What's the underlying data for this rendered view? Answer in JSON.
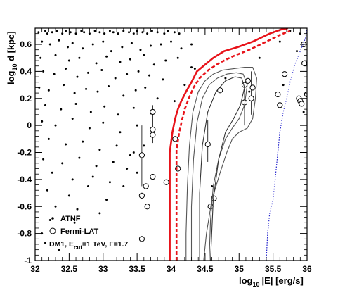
{
  "chart_data": {
    "type": "scatter",
    "xlabel": "log",
    "xlabel_sub": "10",
    "xlabel_rest": "|E| [erg/s]",
    "ylabel": "log",
    "ylabel_sub": "10",
    "ylabel_rest": " d [kpc]",
    "xlim": [
      32,
      36
    ],
    "ylim": [
      -1,
      0.72
    ],
    "xticks": [
      32,
      32.5,
      33,
      33.5,
      34,
      34.5,
      35,
      35.5,
      36
    ],
    "xtick_labels": [
      "32",
      "32.5",
      "33",
      "33.5",
      "34",
      "34.5",
      "35",
      "35.5",
      "36"
    ],
    "yticks": [
      -1,
      -0.8,
      -0.6,
      -0.4,
      -0.2,
      0,
      0.2,
      0.4,
      0.6
    ],
    "ytick_labels": [
      "-1",
      "-0.8",
      "-0.6",
      "-0.4",
      "-0.2",
      "0",
      "0.2",
      "0.4",
      "0.6"
    ],
    "legend": {
      "placement": "bottom-left",
      "entries": [
        {
          "marker": "dot",
          "label": "ATNF"
        },
        {
          "marker": "open-circle",
          "label": "Fermi-LAT"
        }
      ],
      "note_prefix": "DM1, E",
      "note_sub": "cut",
      "note_rest": "=1 TeV, Γ=1.7"
    },
    "series": [
      {
        "name": "ATNF",
        "marker": "dot",
        "x": [
          32.05,
          32.15,
          32.18,
          32.25,
          32.32,
          32.4,
          32.45,
          32.52,
          32.6,
          32.68,
          32.72,
          32.8,
          32.88,
          32.95,
          33.02,
          33.1,
          33.15,
          33.22,
          33.3,
          33.38,
          33.45,
          33.5,
          33.58,
          33.65,
          33.72,
          33.8,
          33.9,
          33.95,
          34.05,
          34.12,
          32.1,
          32.22,
          32.35,
          32.48,
          32.55,
          32.7,
          32.85,
          33.0,
          33.12,
          33.28,
          33.42,
          33.55,
          33.7,
          33.85,
          34.0,
          34.15,
          34.3,
          32.08,
          32.3,
          32.5,
          32.65,
          32.9,
          33.05,
          33.25,
          33.4,
          33.6,
          33.75,
          33.92,
          34.1,
          32.12,
          32.28,
          32.45,
          32.62,
          32.78,
          32.98,
          33.18,
          33.35,
          33.52,
          33.68,
          33.88,
          34.2,
          32.06,
          32.2,
          32.42,
          32.58,
          32.75,
          32.92,
          33.08,
          33.3,
          33.48,
          33.62,
          33.8,
          34.05,
          32.15,
          32.38,
          32.6,
          32.82,
          33.02,
          33.22,
          33.45,
          33.7,
          32.1,
          32.3,
          32.55,
          32.8,
          33.0,
          33.25,
          33.5,
          33.75,
          32.2,
          32.45,
          32.7,
          32.95,
          33.2,
          33.45,
          32.12,
          32.4,
          32.65,
          32.9,
          33.15,
          33.4,
          32.25,
          32.55,
          32.85,
          33.1,
          33.35,
          32.18,
          32.5,
          32.78,
          33.05,
          32.3,
          32.62,
          32.95,
          32.22,
          32.58,
          32.1,
          32.15,
          32.35,
          33.3,
          33.5,
          33.6,
          34.3,
          34.6,
          34.8,
          35.3,
          35.6,
          35.75,
          35.9,
          35.95,
          34.35,
          35.15,
          35.65,
          35.85
        ],
        "y": [
          0.69,
          0.7,
          0.68,
          0.69,
          0.7,
          0.68,
          0.7,
          0.69,
          0.68,
          0.7,
          0.69,
          0.68,
          0.7,
          0.69,
          0.68,
          0.7,
          0.69,
          0.68,
          0.7,
          0.69,
          0.68,
          0.7,
          0.69,
          0.68,
          0.7,
          0.69,
          0.68,
          0.7,
          0.69,
          0.68,
          0.62,
          0.6,
          0.63,
          0.58,
          0.61,
          0.57,
          0.6,
          0.62,
          0.55,
          0.58,
          0.61,
          0.56,
          0.59,
          0.6,
          0.62,
          0.57,
          0.6,
          0.5,
          0.52,
          0.48,
          0.5,
          0.46,
          0.51,
          0.47,
          0.49,
          0.52,
          0.45,
          0.48,
          0.5,
          0.4,
          0.38,
          0.42,
          0.36,
          0.39,
          0.41,
          0.35,
          0.38,
          0.4,
          0.37,
          0.34,
          0.3,
          0.28,
          0.26,
          0.3,
          0.24,
          0.27,
          0.25,
          0.29,
          0.22,
          0.26,
          0.28,
          0.2,
          0.18,
          0.15,
          0.12,
          0.16,
          0.1,
          0.14,
          0.08,
          0.13,
          0.09,
          0.03,
          0.0,
          0.05,
          -0.02,
          0.02,
          -0.05,
          0.0,
          -0.08,
          -0.1,
          -0.14,
          -0.12,
          -0.18,
          -0.15,
          -0.2,
          -0.25,
          -0.28,
          -0.24,
          -0.3,
          -0.27,
          -0.22,
          -0.35,
          -0.4,
          -0.38,
          -0.42,
          -0.32,
          -0.48,
          -0.52,
          -0.45,
          -0.55,
          -0.6,
          -0.62,
          -0.65,
          -0.7,
          -0.72,
          -0.8,
          -0.87,
          -0.92,
          -0.45,
          -0.35,
          -0.15,
          0.43,
          -0.45,
          0.35,
          0.5,
          0.62,
          0.7,
          0.68,
          0.1,
          0.42,
          0.25,
          0.3,
          0.55
        ],
        "color": "#000000"
      },
      {
        "name": "Fermi-LAT",
        "marker": "open-circle",
        "points": [
          {
            "x": 33.57,
            "y": -0.22,
            "elo": -0.45,
            "ehi": 0.0
          },
          {
            "x": 33.57,
            "y": -0.52
          },
          {
            "x": 33.57,
            "y": -0.84
          },
          {
            "x": 33.63,
            "y": -0.45
          },
          {
            "x": 33.65,
            "y": -0.6
          },
          {
            "x": 33.73,
            "y": -0.03,
            "elo": -0.13,
            "ehi": 0.15
          },
          {
            "x": 33.73,
            "y": -0.07
          },
          {
            "x": 33.73,
            "y": 0.1
          },
          {
            "x": 33.73,
            "y": -0.38
          },
          {
            "x": 33.93,
            "y": -0.42
          },
          {
            "x": 34.06,
            "y": -0.1
          },
          {
            "x": 34.1,
            "y": -0.32
          },
          {
            "x": 34.54,
            "y": -0.14,
            "elo": -0.27,
            "ehi": 0.04
          },
          {
            "x": 34.58,
            "y": -0.6
          },
          {
            "x": 34.63,
            "y": -0.54
          },
          {
            "x": 34.72,
            "y": 0.26
          },
          {
            "x": 35.08,
            "y": 0.17,
            "elo": 0.0,
            "ehi": 0.32
          },
          {
            "x": 35.08,
            "y": 0.3
          },
          {
            "x": 35.13,
            "y": 0.33
          },
          {
            "x": 35.18,
            "y": 0.2,
            "elo": 0.08,
            "ehi": 0.4
          },
          {
            "x": 35.2,
            "y": 0.28
          },
          {
            "x": 35.57,
            "y": 0.23,
            "elo": 0.08,
            "ehi": 0.43
          },
          {
            "x": 35.6,
            "y": 0.15
          },
          {
            "x": 35.67,
            "y": 0.38
          },
          {
            "x": 35.88,
            "y": 0.2
          },
          {
            "x": 35.9,
            "y": 0.18
          },
          {
            "x": 35.92,
            "y": 0.16
          },
          {
            "x": 35.95,
            "y": 0.6
          },
          {
            "x": 35.96,
            "y": 0.46
          },
          {
            "x": 36.0,
            "y": 0.23
          }
        ]
      },
      {
        "style": "solid",
        "color": "#e8131a",
        "x": [
          33.98,
          33.98,
          34.02,
          34.06,
          34.1,
          34.15,
          34.22,
          34.3,
          34.38,
          34.5,
          34.62,
          34.78,
          34.98,
          35.2,
          35.45,
          35.62,
          35.72
        ],
        "y": [
          -1.0,
          -0.2,
          -0.05,
          0.05,
          0.12,
          0.18,
          0.25,
          0.32,
          0.4,
          0.45,
          0.5,
          0.55,
          0.58,
          0.62,
          0.68,
          0.71,
          0.72
        ]
      },
      {
        "style": "dashed",
        "color": "#e8131a",
        "x": [
          34.08,
          34.08,
          34.12,
          34.16,
          34.2,
          34.26,
          34.33,
          34.42,
          34.55,
          34.7,
          34.9,
          35.15,
          35.4,
          35.6,
          35.75
        ],
        "y": [
          -1.0,
          -0.18,
          -0.05,
          0.04,
          0.12,
          0.2,
          0.28,
          0.35,
          0.41,
          0.46,
          0.51,
          0.56,
          0.62,
          0.67,
          0.7
        ]
      },
      {
        "style": "solid",
        "color": "#555555",
        "x": [
          34.22,
          34.22,
          34.24,
          34.27,
          34.32,
          34.4,
          34.5,
          34.62,
          34.76,
          34.92,
          35.08,
          35.2,
          35.26,
          35.24,
          35.2,
          35.12,
          35.0,
          34.9,
          34.82,
          34.72,
          34.6,
          34.52,
          34.48
        ],
        "y": [
          -1.0,
          -0.8,
          -0.45,
          -0.15,
          0.1,
          0.25,
          0.33,
          0.38,
          0.41,
          0.42,
          0.43,
          0.43,
          0.35,
          0.2,
          0.05,
          -0.02,
          -0.05,
          -0.1,
          -0.2,
          -0.35,
          -0.55,
          -0.8,
          -1.0
        ]
      },
      {
        "style": "solid",
        "color": "#555555",
        "x": [
          34.3,
          34.3,
          34.33,
          34.38,
          34.46,
          34.56,
          34.68,
          34.82,
          34.96,
          35.06,
          35.12,
          35.08,
          35.0,
          34.9,
          34.8,
          34.7,
          34.62,
          34.58,
          34.56
        ],
        "y": [
          -1.0,
          -0.6,
          -0.25,
          0.02,
          0.2,
          0.3,
          0.35,
          0.38,
          0.39,
          0.38,
          0.3,
          0.15,
          0.05,
          -0.02,
          -0.1,
          -0.25,
          -0.45,
          -0.7,
          -1.0
        ]
      },
      {
        "style": "solid",
        "color": "#333333",
        "x": [
          34.42,
          34.42,
          34.46,
          34.54,
          34.66,
          34.8,
          34.94,
          35.04,
          35.08,
          35.02,
          34.92,
          34.8,
          34.7,
          34.62,
          34.58
        ],
        "y": [
          -1.0,
          -0.5,
          -0.15,
          0.1,
          0.25,
          0.33,
          0.36,
          0.35,
          0.28,
          0.15,
          0.05,
          -0.05,
          -0.25,
          -0.55,
          -1.0
        ]
      },
      {
        "style": "dotted",
        "color": "#2222cc",
        "x": [
          35.4,
          35.42,
          35.45,
          35.5,
          35.55,
          35.6,
          35.65,
          35.7,
          35.75,
          35.82,
          35.9,
          35.98,
          36.0
        ],
        "y": [
          -1.0,
          -0.8,
          -0.65,
          -0.55,
          -0.3,
          -0.05,
          0.1,
          0.2,
          0.32,
          0.45,
          0.55,
          0.65,
          0.72
        ]
      }
    ]
  }
}
